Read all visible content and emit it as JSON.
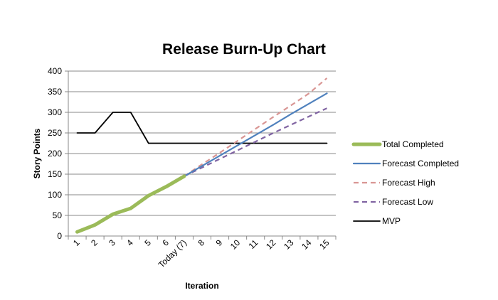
{
  "chart_data": {
    "type": "line",
    "title": "Release Burn-Up Chart",
    "xlabel": "Iteration",
    "ylabel": "Story Points",
    "categories": [
      "1",
      "2",
      "3",
      "4",
      "5",
      "6",
      "Today (7)",
      "8",
      "9",
      "10",
      "11",
      "12",
      "13",
      "14",
      "15"
    ],
    "ylim": [
      0,
      400
    ],
    "yticks": [
      0,
      50,
      100,
      150,
      200,
      250,
      300,
      350,
      400
    ],
    "grid": true,
    "legend_position": "right",
    "series": [
      {
        "name": "Total Completed",
        "color": "#9bbb59",
        "style": "solid-thick",
        "values": [
          10,
          27,
          53,
          67,
          98,
          120,
          145,
          null,
          null,
          null,
          null,
          null,
          null,
          null,
          null
        ]
      },
      {
        "name": "Forecast Completed",
        "color": "#4f81bd",
        "style": "solid",
        "values": [
          null,
          null,
          null,
          null,
          null,
          null,
          145,
          170,
          195,
          220,
          245,
          270,
          296,
          321,
          346
        ]
      },
      {
        "name": "Forecast High",
        "color": "#d99694",
        "style": "dashed",
        "values": [
          null,
          null,
          null,
          null,
          null,
          null,
          145,
          174,
          202,
          231,
          260,
          289,
          317,
          346,
          383
        ]
      },
      {
        "name": "Forecast Low",
        "color": "#8064a2",
        "style": "dashed",
        "values": [
          null,
          null,
          null,
          null,
          null,
          null,
          145,
          166,
          187,
          208,
          229,
          250,
          270,
          290,
          310
        ]
      },
      {
        "name": "MVP",
        "color": "#000000",
        "style": "solid",
        "values": [
          250,
          250,
          300,
          300,
          225,
          225,
          225,
          225,
          225,
          225,
          225,
          225,
          225,
          225,
          225
        ]
      }
    ]
  }
}
